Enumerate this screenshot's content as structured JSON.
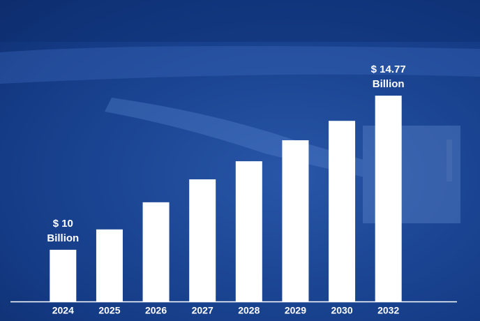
{
  "chart_data": {
    "type": "bar",
    "categories": [
      "2024",
      "2025",
      "2026",
      "2027",
      "2028",
      "2029",
      "2030",
      "2032"
    ],
    "values": [
      10,
      10.63,
      11.47,
      12.18,
      12.74,
      13.39,
      13.99,
      14.77
    ],
    "value_labels": [
      "$ 10 Billion",
      null,
      null,
      null,
      null,
      null,
      null,
      "$ 14.77 Billion"
    ],
    "color": "#ffffff",
    "ylim": [
      8.4,
      16.5
    ]
  }
}
